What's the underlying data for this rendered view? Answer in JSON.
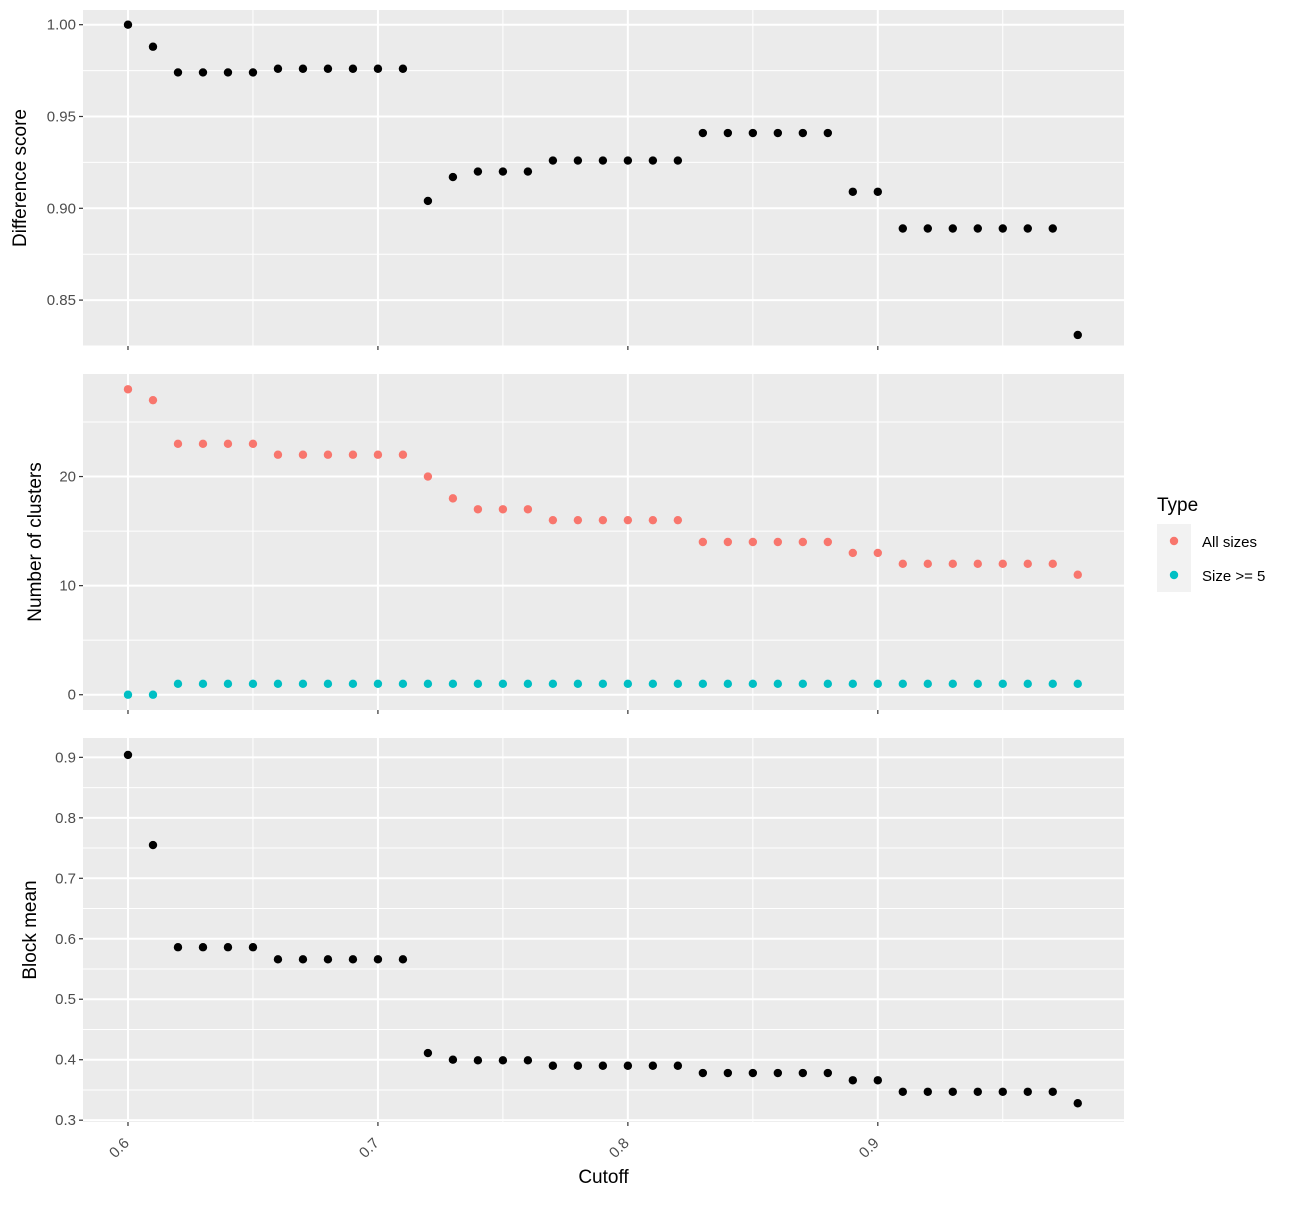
{
  "chart_data": [
    {
      "type": "scatter",
      "panel": "top",
      "ylabel": "Difference score",
      "ylim": [
        0.825,
        1.008
      ],
      "yticks": [
        0.85,
        0.9,
        0.95,
        1.0
      ],
      "ytick_labels": [
        "0.85",
        "0.90",
        "0.95",
        "1.00"
      ],
      "grid": true,
      "series": [
        {
          "color": "#000000",
          "x": [
            0.6,
            0.61,
            0.62,
            0.63,
            0.64,
            0.65,
            0.66,
            0.67,
            0.68,
            0.69,
            0.7,
            0.71,
            0.72,
            0.73,
            0.74,
            0.75,
            0.76,
            0.77,
            0.78,
            0.79,
            0.8,
            0.81,
            0.82,
            0.83,
            0.84,
            0.85,
            0.86,
            0.87,
            0.88,
            0.89,
            0.9,
            0.91,
            0.92,
            0.93,
            0.94,
            0.95,
            0.96,
            0.97,
            0.98
          ],
          "y": [
            1.0,
            0.988,
            0.974,
            0.974,
            0.974,
            0.974,
            0.976,
            0.976,
            0.976,
            0.976,
            0.976,
            0.976,
            0.904,
            0.917,
            0.92,
            0.92,
            0.92,
            0.926,
            0.926,
            0.926,
            0.926,
            0.926,
            0.926,
            0.941,
            0.941,
            0.941,
            0.941,
            0.941,
            0.941,
            0.909,
            0.909,
            0.889,
            0.889,
            0.889,
            0.889,
            0.889,
            0.889,
            0.889,
            0.831
          ]
        }
      ]
    },
    {
      "type": "scatter",
      "panel": "middle",
      "ylabel": "Number of clusters",
      "ylim": [
        -1.4,
        29.4
      ],
      "yticks": [
        0,
        10,
        20
      ],
      "ytick_labels": [
        "0",
        "10",
        "20"
      ],
      "grid": true,
      "legend": {
        "title": "Type",
        "placement": "right"
      },
      "series": [
        {
          "name": "All sizes",
          "color": "#F8766D",
          "x": [
            0.6,
            0.61,
            0.62,
            0.63,
            0.64,
            0.65,
            0.66,
            0.67,
            0.68,
            0.69,
            0.7,
            0.71,
            0.72,
            0.73,
            0.74,
            0.75,
            0.76,
            0.77,
            0.78,
            0.79,
            0.8,
            0.81,
            0.82,
            0.83,
            0.84,
            0.85,
            0.86,
            0.87,
            0.88,
            0.89,
            0.9,
            0.91,
            0.92,
            0.93,
            0.94,
            0.95,
            0.96,
            0.97,
            0.98
          ],
          "y": [
            28,
            27,
            23,
            23,
            23,
            23,
            22,
            22,
            22,
            22,
            22,
            22,
            20,
            18,
            17,
            17,
            17,
            16,
            16,
            16,
            16,
            16,
            16,
            14,
            14,
            14,
            14,
            14,
            14,
            13,
            13,
            12,
            12,
            12,
            12,
            12,
            12,
            12,
            11
          ]
        },
        {
          "name": "Size >= 5",
          "color": "#00BFC4",
          "x": [
            0.6,
            0.61,
            0.62,
            0.63,
            0.64,
            0.65,
            0.66,
            0.67,
            0.68,
            0.69,
            0.7,
            0.71,
            0.72,
            0.73,
            0.74,
            0.75,
            0.76,
            0.77,
            0.78,
            0.79,
            0.8,
            0.81,
            0.82,
            0.83,
            0.84,
            0.85,
            0.86,
            0.87,
            0.88,
            0.89,
            0.9,
            0.91,
            0.92,
            0.93,
            0.94,
            0.95,
            0.96,
            0.97,
            0.98
          ],
          "y": [
            0,
            0,
            1,
            1,
            1,
            1,
            1,
            1,
            1,
            1,
            1,
            1,
            1,
            1,
            1,
            1,
            1,
            1,
            1,
            1,
            1,
            1,
            1,
            1,
            1,
            1,
            1,
            1,
            1,
            1,
            1,
            1,
            1,
            1,
            1,
            1,
            1,
            1,
            1
          ]
        }
      ]
    },
    {
      "type": "scatter",
      "panel": "bottom",
      "ylabel": "Block mean",
      "xlabel": "Cutoff",
      "ylim": [
        0.297,
        0.932
      ],
      "yticks": [
        0.3,
        0.4,
        0.5,
        0.6,
        0.7,
        0.8,
        0.9
      ],
      "ytick_labels": [
        "0.3",
        "0.4",
        "0.5",
        "0.6",
        "0.7",
        "0.8",
        "0.9"
      ],
      "grid": true,
      "series": [
        {
          "color": "#000000",
          "x": [
            0.6,
            0.61,
            0.62,
            0.63,
            0.64,
            0.65,
            0.66,
            0.67,
            0.68,
            0.69,
            0.7,
            0.71,
            0.72,
            0.73,
            0.74,
            0.75,
            0.76,
            0.77,
            0.78,
            0.79,
            0.8,
            0.81,
            0.82,
            0.83,
            0.84,
            0.85,
            0.86,
            0.87,
            0.88,
            0.89,
            0.9,
            0.91,
            0.92,
            0.93,
            0.94,
            0.95,
            0.96,
            0.97,
            0.98
          ],
          "y": [
            0.904,
            0.755,
            0.586,
            0.586,
            0.586,
            0.586,
            0.566,
            0.566,
            0.566,
            0.566,
            0.566,
            0.566,
            0.411,
            0.4,
            0.399,
            0.399,
            0.399,
            0.39,
            0.39,
            0.39,
            0.39,
            0.39,
            0.39,
            0.378,
            0.378,
            0.378,
            0.378,
            0.378,
            0.378,
            0.366,
            0.366,
            0.347,
            0.347,
            0.347,
            0.347,
            0.347,
            0.347,
            0.347,
            0.328
          ]
        }
      ]
    }
  ],
  "x_axis": {
    "xlim": [
      0.582,
      0.9985
    ],
    "ticks": [
      0.6,
      0.7,
      0.8,
      0.9
    ],
    "tick_labels": [
      "0.6",
      "0.7",
      "0.8",
      "0.9"
    ],
    "label": "Cutoff"
  }
}
